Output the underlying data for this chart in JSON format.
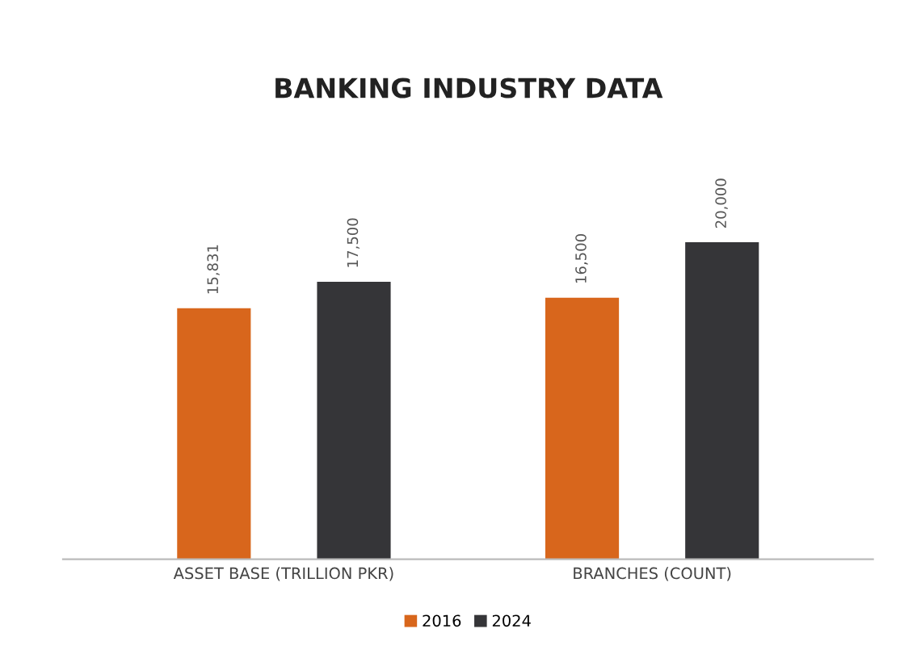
{
  "chart_data": {
    "type": "bar",
    "title": "BANKING INDUSTRY DATA",
    "categories": [
      "ASSET BASE (TRILLION PKR)",
      "BRANCHES (COUNT)"
    ],
    "series": [
      {
        "name": "2016",
        "color": "#d8661c",
        "values": [
          15831,
          16500
        ],
        "value_labels": [
          "15,831",
          "16,500"
        ]
      },
      {
        "name": "2024",
        "color": "#353538",
        "values": [
          17500,
          20000
        ],
        "value_labels": [
          "17,500",
          "20,000"
        ]
      }
    ],
    "legend": "bottom",
    "grid": false
  }
}
